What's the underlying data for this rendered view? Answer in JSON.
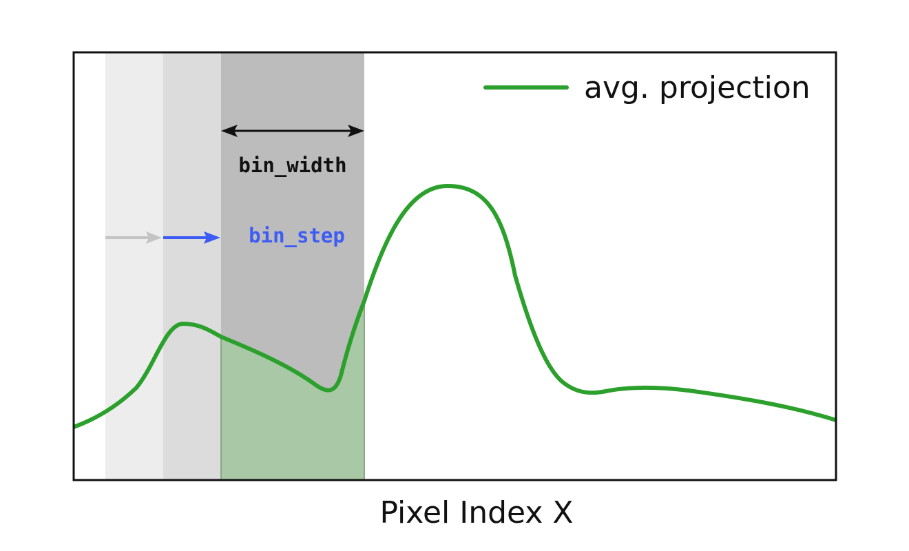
{
  "legend": {
    "label": "avg. projection",
    "color": "#2ca02c"
  },
  "annotations": {
    "bin_width": "bin_width",
    "bin_step": "bin_step",
    "bin_step_color": "#3d5cf5",
    "bin_width_color": "#111111",
    "previous_step_color": "#c4c4c4"
  },
  "xlabel": "Pixel Index X",
  "colors": {
    "curve": "#2ca02c",
    "bin_fill": "#a9c9a6",
    "band_1": "#ededed",
    "band_2": "#dcdcdc",
    "band_current": "#bcbcbc",
    "frame": "#111111"
  }
}
